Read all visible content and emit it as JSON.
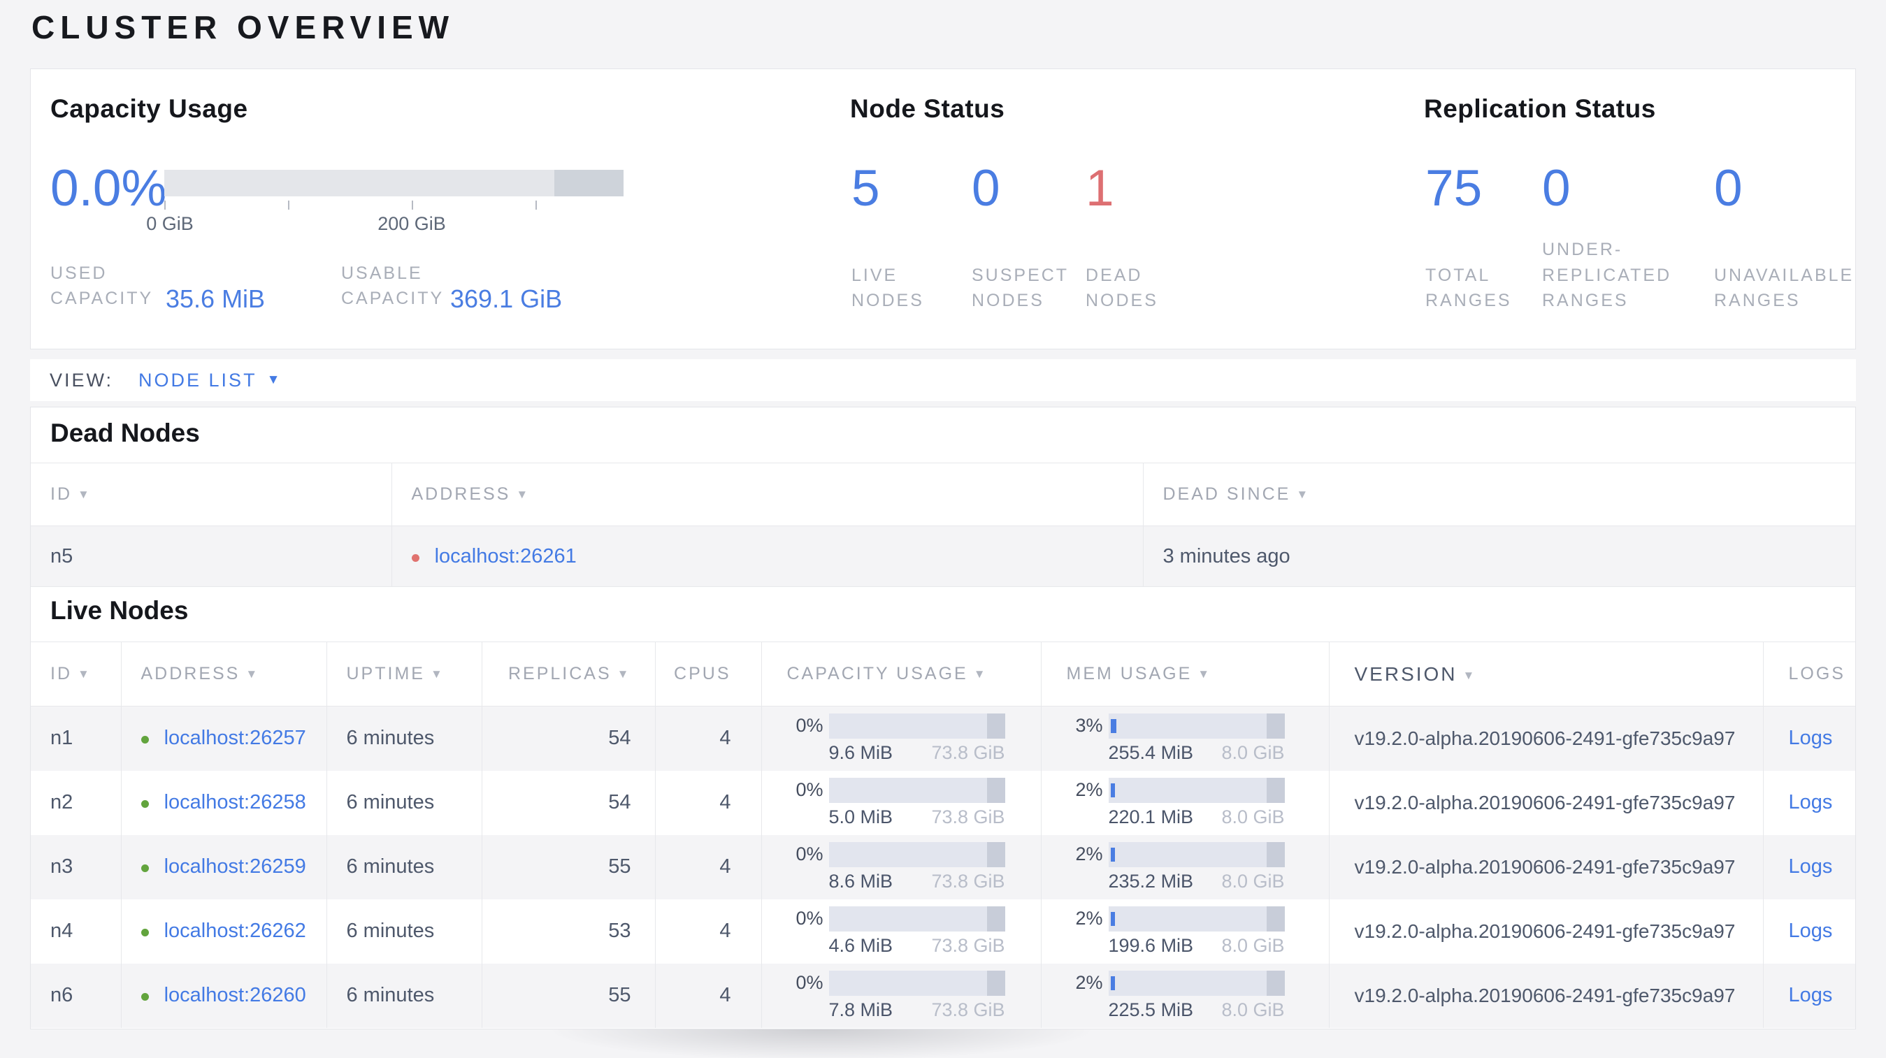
{
  "page": {
    "title": "CLUSTER OVERVIEW"
  },
  "summary": {
    "capacity": {
      "title": "Capacity Usage",
      "percent": "0.0%",
      "ticks": [
        "0 GiB",
        "200 GiB"
      ],
      "used": {
        "label": "USED\nCAPACITY",
        "value": "35.6 MiB"
      },
      "usable": {
        "label": "USABLE\nCAPACITY",
        "value": "369.1 GiB"
      }
    },
    "node_status": {
      "title": "Node Status",
      "stats": [
        {
          "value": "5",
          "label": "LIVE\nNODES"
        },
        {
          "value": "0",
          "label": "SUSPECT\nNODES"
        },
        {
          "value": "1",
          "label": "DEAD\nNODES"
        }
      ]
    },
    "replication": {
      "title": "Replication Status",
      "stats": [
        {
          "value": "75",
          "label": "TOTAL\nRANGES"
        },
        {
          "value": "0",
          "label": "UNDER-\nREPLICATED\nRANGES"
        },
        {
          "value": "0",
          "label": "UNAVAILABLE\nRANGES"
        }
      ]
    }
  },
  "view_bar": {
    "label": "VIEW:",
    "selected": "NODE LIST"
  },
  "dead_nodes": {
    "title": "Dead Nodes",
    "columns": [
      "ID",
      "ADDRESS",
      "DEAD SINCE"
    ],
    "rows": [
      {
        "id": "n5",
        "address": "localhost:26261",
        "dead_since": "3 minutes ago"
      }
    ]
  },
  "live_nodes": {
    "title": "Live Nodes",
    "columns": [
      "ID",
      "ADDRESS",
      "UPTIME",
      "REPLICAS",
      "CPUS",
      "CAPACITY USAGE",
      "MEM USAGE",
      "VERSION",
      "LOGS"
    ],
    "rows": [
      {
        "id": "n1",
        "address": "localhost:26257",
        "uptime": "6 minutes",
        "replicas": "54",
        "cpus": "4",
        "capacity_pct": "0%",
        "capacity_used": "9.6 MiB",
        "capacity_total": "73.8 GiB",
        "mem_pct": "3%",
        "mem_used": "255.4 MiB",
        "mem_total": "8.0 GiB",
        "version": "v19.2.0-alpha.20190606-2491-gfe735c9a97",
        "logs": "Logs"
      },
      {
        "id": "n2",
        "address": "localhost:26258",
        "uptime": "6 minutes",
        "replicas": "54",
        "cpus": "4",
        "capacity_pct": "0%",
        "capacity_used": "5.0 MiB",
        "capacity_total": "73.8 GiB",
        "mem_pct": "2%",
        "mem_used": "220.1 MiB",
        "mem_total": "8.0 GiB",
        "version": "v19.2.0-alpha.20190606-2491-gfe735c9a97",
        "logs": "Logs"
      },
      {
        "id": "n3",
        "address": "localhost:26259",
        "uptime": "6 minutes",
        "replicas": "55",
        "cpus": "4",
        "capacity_pct": "0%",
        "capacity_used": "8.6 MiB",
        "capacity_total": "73.8 GiB",
        "mem_pct": "2%",
        "mem_used": "235.2 MiB",
        "mem_total": "8.0 GiB",
        "version": "v19.2.0-alpha.20190606-2491-gfe735c9a97",
        "logs": "Logs"
      },
      {
        "id": "n4",
        "address": "localhost:26262",
        "uptime": "6 minutes",
        "replicas": "53",
        "cpus": "4",
        "capacity_pct": "0%",
        "capacity_used": "4.6 MiB",
        "capacity_total": "73.8 GiB",
        "mem_pct": "2%",
        "mem_used": "199.6 MiB",
        "mem_total": "8.0 GiB",
        "version": "v19.2.0-alpha.20190606-2491-gfe735c9a97",
        "logs": "Logs"
      },
      {
        "id": "n6",
        "address": "localhost:26260",
        "uptime": "6 minutes",
        "replicas": "55",
        "cpus": "4",
        "capacity_pct": "0%",
        "capacity_used": "7.8 MiB",
        "capacity_total": "73.8 GiB",
        "mem_pct": "2%",
        "mem_used": "225.5 MiB",
        "mem_total": "8.0 GiB",
        "version": "v19.2.0-alpha.20190606-2491-gfe735c9a97",
        "logs": "Logs"
      }
    ]
  },
  "colors": {
    "accent_blue": "#4a7de2",
    "danger_red": "#dd6f72",
    "live_dot_green": "#62a43d",
    "dead_dot_red": "#e0726f"
  }
}
